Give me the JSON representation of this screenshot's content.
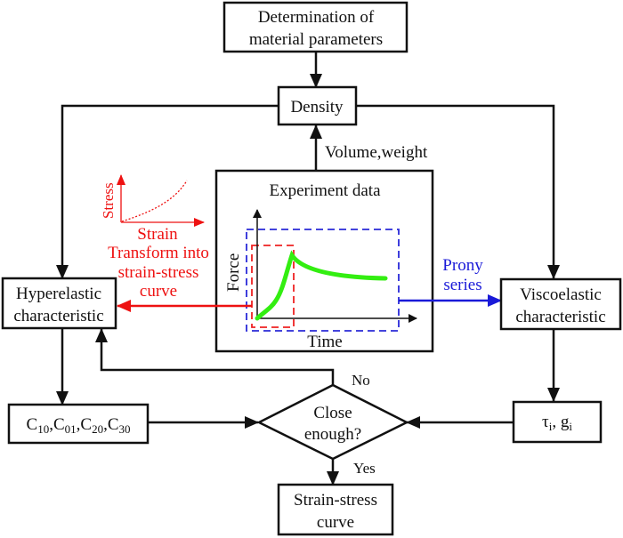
{
  "nodes": {
    "determination": [
      "Determination of",
      "material parameters"
    ],
    "density": "Density",
    "experiment": "Experiment data",
    "force_axis": "Force",
    "time_axis": "Time",
    "hyperelastic": [
      "Hyperelastic",
      "characteristic"
    ],
    "viscoelastic": [
      "Viscoelastic",
      "characteristic"
    ],
    "c_params": {
      "c": "C",
      "subs": [
        "10",
        "01",
        "20",
        "30"
      ]
    },
    "tau_g": {
      "tau": "τ",
      "g": "g",
      "sub": "i"
    },
    "decision": [
      "Close",
      "enough?"
    ],
    "result": [
      "Strain-stress",
      "curve"
    ]
  },
  "edges": {
    "volume_weight": "Volume,weight",
    "transform": [
      "Transform into",
      "strain-stress",
      "curve"
    ],
    "prony": [
      "Prony",
      "series"
    ],
    "no": "No",
    "yes": "Yes"
  },
  "inset": {
    "stress": "Stress",
    "strain": "Strain"
  },
  "colors": {
    "red": "#ee1111",
    "blue": "#1a1ad8",
    "green": "#33ee11",
    "black": "#111111"
  }
}
